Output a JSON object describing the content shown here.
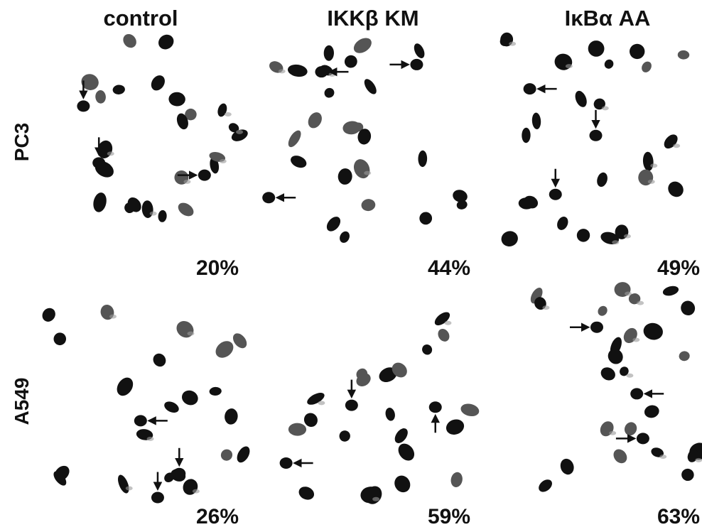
{
  "columns": [
    "control",
    "IKKβ KM",
    "IκBα AA"
  ],
  "rows": [
    {
      "label": "PC3",
      "panels": [
        "20%",
        "44%",
        "49%"
      ]
    },
    {
      "label": "A549",
      "panels": [
        "26%",
        "59%",
        "63%"
      ]
    }
  ]
}
